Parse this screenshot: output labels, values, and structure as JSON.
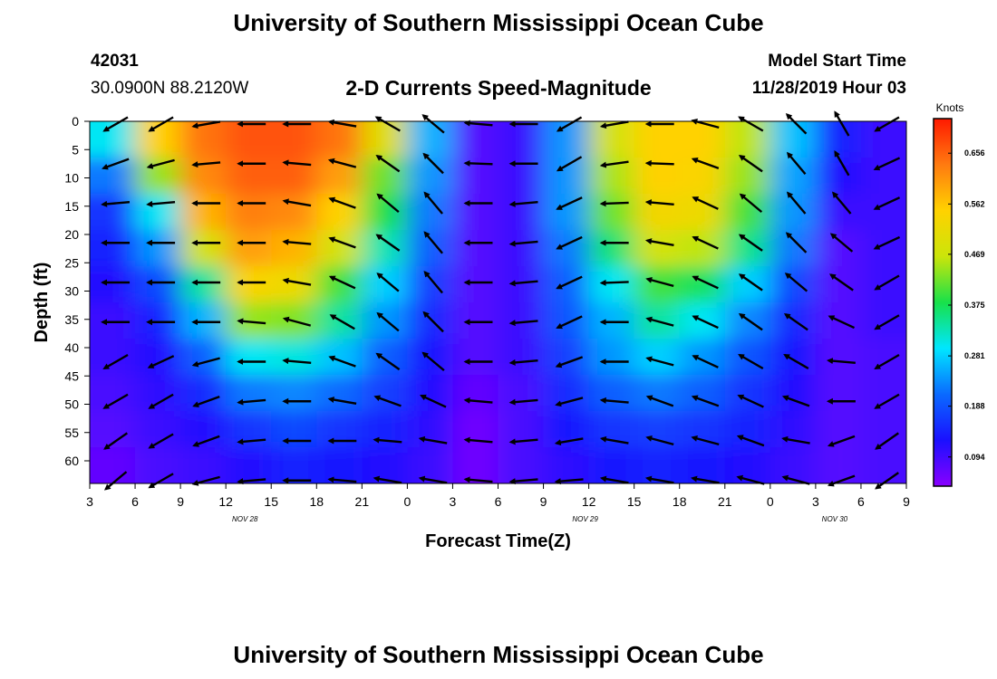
{
  "header": {
    "title": "University of Southern Mississippi Ocean Cube",
    "station_id": "42031",
    "coordinates": "30.0900N 88.2120W",
    "subtitle": "2-D Currents Speed-Magnitude",
    "model_label": "Model Start Time",
    "model_time": "11/28/2019 Hour 03"
  },
  "footer": {
    "title": "University of Southern Mississippi Ocean Cube"
  },
  "chart_data": {
    "type": "heatmap",
    "title": "2-D Currents Speed-Magnitude",
    "xlabel": "Forecast Time(Z)",
    "ylabel": "Depth (ft)",
    "x_ticks": [
      "3",
      "6",
      "9",
      "12",
      "15",
      "18",
      "21",
      "0",
      "3",
      "6",
      "9",
      "12",
      "15",
      "18",
      "21",
      "0",
      "3",
      "6",
      "9"
    ],
    "x_tick_hours": [
      0,
      3,
      6,
      9,
      12,
      15,
      18,
      21,
      24,
      27,
      30,
      33,
      36,
      39,
      42,
      45,
      48,
      51,
      54
    ],
    "date_labels": [
      {
        "text": "NOV 28",
        "hour": 10.5
      },
      {
        "text": "NOV 29",
        "hour": 33
      },
      {
        "text": "NOV 30",
        "hour": 49.5
      }
    ],
    "y_ticks": [
      "0",
      "5",
      "10",
      "15",
      "20",
      "25",
      "30",
      "35",
      "40",
      "45",
      "50",
      "55",
      "60"
    ],
    "y_tick_values": [
      0,
      5,
      10,
      15,
      20,
      25,
      30,
      35,
      40,
      45,
      50,
      55,
      60
    ],
    "xlim_hours": [
      0,
      54
    ],
    "ylim_ft": [
      0,
      64
    ],
    "y_inverted": true,
    "colorbar": {
      "unit": "Knots",
      "ticks": [
        "0.656",
        "0.562",
        "0.469",
        "0.375",
        "0.281",
        "0.188",
        "0.094"
      ],
      "tick_values": [
        0.656,
        0.562,
        0.469,
        0.375,
        0.281,
        0.188,
        0.094
      ],
      "range": [
        0.04,
        0.72
      ],
      "colors": [
        "#8a00ff",
        "#1a10ff",
        "#0a6aff",
        "#00e6ff",
        "#18e14a",
        "#cbe50a",
        "#ffd200",
        "#ff7a10",
        "#ff1a00"
      ]
    },
    "grid": false,
    "depth_levels_ft": [
      0,
      7,
      14,
      21,
      28,
      35,
      42,
      49,
      56,
      63
    ],
    "time_columns_hours": [
      1.5,
      4.5,
      7.5,
      10.5,
      13.5,
      16.5,
      19.5,
      22.5,
      25.5,
      28.5,
      31.5,
      34.5,
      37.5,
      40.5,
      43.5,
      46.5,
      49.5,
      52.5
    ],
    "speed_knots": [
      [
        0.3,
        0.55,
        0.64,
        0.67,
        0.67,
        0.64,
        0.5,
        0.26,
        0.08,
        0.1,
        0.24,
        0.48,
        0.55,
        0.55,
        0.46,
        0.27,
        0.14,
        0.1
      ],
      [
        0.22,
        0.44,
        0.62,
        0.66,
        0.66,
        0.6,
        0.42,
        0.24,
        0.08,
        0.1,
        0.24,
        0.45,
        0.55,
        0.54,
        0.44,
        0.25,
        0.12,
        0.1
      ],
      [
        0.16,
        0.3,
        0.58,
        0.63,
        0.62,
        0.55,
        0.38,
        0.22,
        0.08,
        0.1,
        0.24,
        0.42,
        0.53,
        0.52,
        0.4,
        0.24,
        0.1,
        0.1
      ],
      [
        0.14,
        0.24,
        0.48,
        0.6,
        0.58,
        0.48,
        0.33,
        0.2,
        0.08,
        0.1,
        0.22,
        0.36,
        0.48,
        0.46,
        0.35,
        0.22,
        0.08,
        0.1
      ],
      [
        0.12,
        0.18,
        0.34,
        0.54,
        0.52,
        0.4,
        0.28,
        0.17,
        0.08,
        0.1,
        0.2,
        0.3,
        0.4,
        0.37,
        0.28,
        0.18,
        0.08,
        0.1
      ],
      [
        0.1,
        0.14,
        0.26,
        0.44,
        0.43,
        0.34,
        0.24,
        0.15,
        0.08,
        0.1,
        0.19,
        0.26,
        0.34,
        0.3,
        0.23,
        0.15,
        0.08,
        0.1
      ],
      [
        0.1,
        0.12,
        0.2,
        0.3,
        0.31,
        0.27,
        0.2,
        0.13,
        0.08,
        0.1,
        0.17,
        0.24,
        0.28,
        0.24,
        0.19,
        0.13,
        0.08,
        0.09
      ],
      [
        0.09,
        0.11,
        0.15,
        0.22,
        0.23,
        0.21,
        0.17,
        0.12,
        0.07,
        0.09,
        0.15,
        0.2,
        0.22,
        0.2,
        0.16,
        0.12,
        0.08,
        0.09
      ],
      [
        0.08,
        0.1,
        0.12,
        0.16,
        0.18,
        0.16,
        0.14,
        0.11,
        0.06,
        0.09,
        0.13,
        0.16,
        0.17,
        0.16,
        0.14,
        0.11,
        0.08,
        0.09
      ],
      [
        0.07,
        0.09,
        0.1,
        0.12,
        0.14,
        0.13,
        0.12,
        0.1,
        0.06,
        0.09,
        0.11,
        0.13,
        0.14,
        0.13,
        0.12,
        0.1,
        0.08,
        0.09
      ]
    ],
    "arrow_direction_deg": [
      [
        240,
        240,
        260,
        270,
        270,
        280,
        300,
        310,
        275,
        270,
        240,
        260,
        270,
        285,
        300,
        315,
        330,
        240
      ],
      [
        250,
        255,
        265,
        270,
        275,
        285,
        305,
        315,
        272,
        270,
        240,
        262,
        272,
        290,
        305,
        320,
        330,
        245
      ],
      [
        265,
        265,
        270,
        270,
        280,
        290,
        310,
        320,
        270,
        265,
        245,
        268,
        275,
        295,
        310,
        320,
        320,
        245
      ],
      [
        270,
        270,
        270,
        270,
        275,
        290,
        305,
        320,
        270,
        265,
        245,
        270,
        280,
        295,
        305,
        315,
        310,
        245
      ],
      [
        270,
        270,
        270,
        270,
        280,
        295,
        310,
        320,
        270,
        265,
        245,
        268,
        285,
        295,
        305,
        310,
        305,
        240
      ],
      [
        270,
        270,
        270,
        275,
        285,
        300,
        310,
        315,
        270,
        265,
        245,
        270,
        285,
        295,
        305,
        305,
        295,
        240
      ],
      [
        240,
        245,
        255,
        270,
        275,
        290,
        305,
        310,
        270,
        265,
        250,
        270,
        285,
        295,
        300,
        300,
        275,
        240
      ],
      [
        240,
        240,
        250,
        265,
        270,
        280,
        290,
        295,
        275,
        265,
        255,
        275,
        290,
        290,
        295,
        290,
        270,
        240
      ],
      [
        235,
        240,
        250,
        265,
        270,
        270,
        275,
        280,
        275,
        265,
        260,
        280,
        285,
        285,
        290,
        280,
        250,
        235
      ],
      [
        230,
        240,
        255,
        265,
        270,
        275,
        280,
        280,
        275,
        265,
        265,
        280,
        280,
        280,
        285,
        285,
        250,
        235
      ]
    ]
  }
}
